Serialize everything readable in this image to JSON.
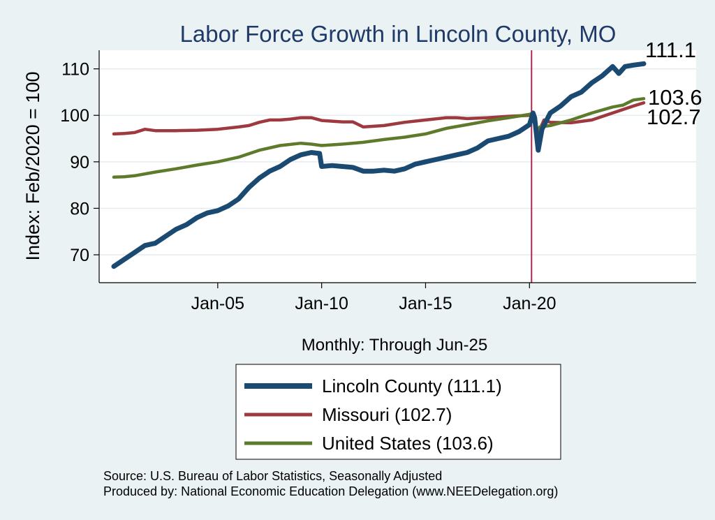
{
  "chart_data": {
    "type": "line",
    "title": "Labor Force Growth in Lincoln  County, MO",
    "xlabel": "Monthly: Through Jun-25",
    "ylabel": "Index: Feb/2020 = 100",
    "x_range": [
      2000.0,
      2025.5
    ],
    "ylim": [
      64,
      114
    ],
    "y_ticks": [
      70,
      80,
      90,
      100,
      110
    ],
    "x_ticks": [
      {
        "x": 2005,
        "label": "Jan-05"
      },
      {
        "x": 2010,
        "label": "Jan-10"
      },
      {
        "x": 2015,
        "label": "Jan-15"
      },
      {
        "x": 2020,
        "label": "Jan-20"
      }
    ],
    "vline": {
      "x": 2020.1,
      "color": "#B0284F"
    },
    "legend": "bottom-center",
    "series": [
      {
        "name": "Lincoln  County",
        "legend_label": "Lincoln  County (111.1)",
        "end_label": "111.1",
        "color": "#1A4A72",
        "x": [
          2000.0,
          2000.5,
          2001.0,
          2001.5,
          2002.0,
          2002.5,
          2003.0,
          2003.5,
          2004.0,
          2004.5,
          2005.0,
          2005.5,
          2006.0,
          2006.5,
          2007.0,
          2007.5,
          2008.0,
          2008.5,
          2009.0,
          2009.5,
          2009.9,
          2010.0,
          2010.5,
          2011.0,
          2011.5,
          2012.0,
          2012.5,
          2013.0,
          2013.5,
          2014.0,
          2014.5,
          2015.0,
          2015.5,
          2016.0,
          2016.5,
          2017.0,
          2017.5,
          2018.0,
          2018.5,
          2019.0,
          2019.5,
          2020.0,
          2020.17,
          2020.25,
          2020.42,
          2020.6,
          2021.0,
          2021.5,
          2022.0,
          2022.5,
          2023.0,
          2023.5,
          2024.0,
          2024.3,
          2024.6,
          2025.0,
          2025.5
        ],
        "y": [
          67.5,
          69.0,
          70.5,
          72.0,
          72.5,
          74.0,
          75.5,
          76.5,
          78.0,
          79.0,
          79.5,
          80.5,
          82.0,
          84.5,
          86.5,
          88.0,
          89.0,
          90.5,
          91.5,
          92.0,
          91.8,
          89.0,
          89.2,
          89.0,
          88.8,
          88.0,
          88.0,
          88.2,
          88.0,
          88.5,
          89.5,
          90.0,
          90.5,
          91.0,
          91.5,
          92.0,
          93.0,
          94.5,
          95.0,
          95.5,
          96.5,
          98.0,
          100.5,
          99.5,
          92.5,
          97.0,
          100.5,
          102.0,
          104.0,
          105.0,
          107.0,
          108.5,
          110.5,
          109.0,
          110.5,
          110.8,
          111.1
        ]
      },
      {
        "name": "Missouri",
        "legend_label": "Missouri (102.7)",
        "end_label": "102.7",
        "color": "#9E3A3F",
        "x": [
          2000.0,
          2000.5,
          2001.0,
          2001.5,
          2002.0,
          2003.0,
          2004.0,
          2005.0,
          2006.0,
          2006.5,
          2007.0,
          2007.5,
          2008.0,
          2008.5,
          2009.0,
          2009.5,
          2010.0,
          2011.0,
          2011.5,
          2012.0,
          2013.0,
          2014.0,
          2015.0,
          2016.0,
          2016.5,
          2017.0,
          2018.0,
          2019.0,
          2020.0,
          2020.17,
          2020.3,
          2020.45,
          2020.7,
          2021.0,
          2022.0,
          2023.0,
          2024.0,
          2025.0,
          2025.5
        ],
        "y": [
          96.0,
          96.1,
          96.3,
          97.0,
          96.7,
          96.7,
          96.8,
          97.0,
          97.5,
          97.8,
          98.5,
          99.0,
          99.0,
          99.2,
          99.5,
          99.5,
          98.9,
          98.6,
          98.6,
          97.5,
          97.8,
          98.5,
          99.0,
          99.5,
          99.5,
          99.3,
          99.5,
          99.8,
          100.0,
          100.3,
          97.5,
          96.5,
          99.0,
          98.5,
          98.4,
          99.0,
          100.5,
          102.0,
          102.7
        ]
      },
      {
        "name": "United States",
        "legend_label": "United States (103.6)",
        "end_label": "103.6",
        "color": "#5E7B2C",
        "x": [
          2000.0,
          2000.5,
          2001.0,
          2002.0,
          2003.0,
          2004.0,
          2005.0,
          2006.0,
          2007.0,
          2008.0,
          2009.0,
          2009.5,
          2010.0,
          2011.0,
          2012.0,
          2013.0,
          2014.0,
          2015.0,
          2016.0,
          2017.0,
          2018.0,
          2019.0,
          2020.0,
          2020.17,
          2020.3,
          2020.5,
          2021.0,
          2022.0,
          2023.0,
          2024.0,
          2024.5,
          2025.0,
          2025.5
        ],
        "y": [
          86.7,
          86.8,
          87.0,
          87.8,
          88.5,
          89.3,
          90.0,
          91.0,
          92.5,
          93.5,
          94.0,
          93.8,
          93.5,
          93.8,
          94.2,
          94.8,
          95.3,
          96.0,
          97.2,
          98.0,
          98.8,
          99.5,
          100.2,
          100.5,
          96.5,
          97.5,
          97.8,
          99.0,
          100.5,
          101.8,
          102.2,
          103.3,
          103.6
        ]
      }
    ]
  },
  "source_line1": "Source: U.S. Bureau of Labor Statistics, Seasonally Adjusted",
  "source_line2": "Produced by: National Economic Education Delegation (www.NEEDelegation.org)"
}
